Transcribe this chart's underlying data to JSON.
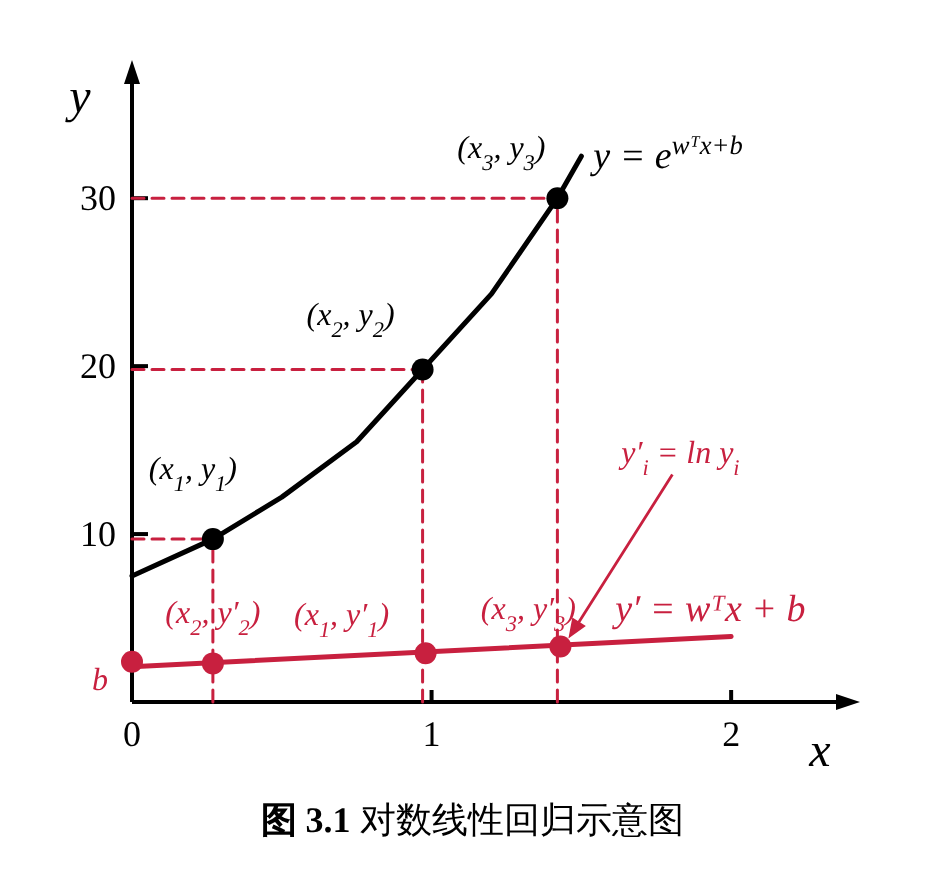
{
  "chart_data": {
    "type": "line",
    "title": "**图 3.1**  对数线性回归示意图",
    "xlabel": "x",
    "ylabel": "y",
    "xlim": [
      0,
      2.35
    ],
    "ylim": [
      0,
      36.8
    ],
    "xticks": [
      0,
      1,
      2
    ],
    "yticks": [
      10,
      20,
      30
    ],
    "series": [
      {
        "name": "y = e$^{wᵀx+b}$",
        "type": "line",
        "color": "#000000",
        "marker": "none",
        "x": [
          0,
          0.27,
          0.5,
          0.75,
          0.97,
          1.2,
          1.42,
          1.5
        ],
        "values": [
          7.5,
          9.7,
          12.2,
          15.5,
          19.8,
          24.3,
          30,
          32.5
        ]
      },
      {
        "type": "scatter",
        "color": "#000000",
        "marker": "circle",
        "x": [
          0.27,
          0.97,
          1.42
        ],
        "values": [
          9.7,
          19.8,
          30
        ]
      },
      {
        "name": "y′ = wᵀx + b",
        "type": "line",
        "color": "#c8203f",
        "marker": "none",
        "x": [
          0,
          2
        ],
        "values": [
          2.1,
          3.9
        ]
      },
      {
        "type": "scatter",
        "color": "#c8203f",
        "marker": "circle",
        "x": [
          0,
          0.27,
          0.98,
          1.43
        ],
        "values": [
          2.4,
          2.3,
          2.9,
          3.3
        ]
      },
      {
        "type": "line",
        "color": "#c8203f",
        "line_style": "dashed",
        "marker": "none",
        "x": [
          0,
          0.27
        ],
        "values": [
          9.7,
          9.7
        ]
      },
      {
        "type": "line",
        "color": "#c8203f",
        "line_style": "dashed",
        "marker": "none",
        "x": [
          0,
          0.97
        ],
        "values": [
          19.8,
          19.8
        ]
      },
      {
        "type": "line",
        "color": "#c8203f",
        "line_style": "dashed",
        "marker": "none",
        "x": [
          0,
          1.42
        ],
        "values": [
          30,
          30
        ]
      },
      {
        "type": "line",
        "color": "#c8203f",
        "line_style": "dashed",
        "marker": "none",
        "x": [
          0.27,
          0.27
        ],
        "values": [
          0,
          9.7
        ]
      },
      {
        "type": "line",
        "color": "#c8203f",
        "line_style": "dashed",
        "marker": "none",
        "x": [
          0.97,
          0.97
        ],
        "values": [
          0,
          19.8
        ]
      },
      {
        "type": "line",
        "color": "#c8203f",
        "line_style": "dashed",
        "marker": "none",
        "x": [
          1.42,
          1.42
        ],
        "values": [
          0,
          30
        ]
      }
    ],
    "annotations": [
      {
        "text": "(x$_{1}$, y$_{1}$)",
        "x": 0.27,
        "y": 9.7
      },
      {
        "text": "(x$_{2}$, y$_{2}$)",
        "x": 0.97,
        "y": 19.8
      },
      {
        "text": "(x$_{3}$, y$_{3}$)",
        "x": 1.42,
        "y": 30
      },
      {
        "text": "b",
        "x": 0,
        "y": 2.4
      },
      {
        "text": "(x$_{2}$, y′$_{2}$)",
        "x": 0.27,
        "y": 2.3
      },
      {
        "text": "(x$_{1}$, y′$_{1}$)",
        "x": 0.98,
        "y": 2.9
      },
      {
        "text": "(x$_{3}$, y′$_{3}$)",
        "x": 1.43,
        "y": 3.3
      },
      "y′$_{i}$ = ln y$_{i}$"
    ]
  }
}
